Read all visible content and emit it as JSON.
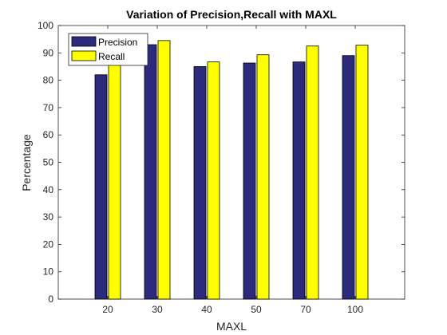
{
  "chart_data": {
    "type": "bar",
    "title": "Variation of Precision,Recall with MAXL",
    "xlabel": "MAXL",
    "ylabel": "Percentage",
    "categories": [
      "20",
      "30",
      "40",
      "50",
      "70",
      "100"
    ],
    "ylim": [
      0,
      100
    ],
    "yticks": [
      0,
      10,
      20,
      30,
      40,
      50,
      60,
      70,
      80,
      90,
      100
    ],
    "grid": false,
    "legend_position": "top-left",
    "series": [
      {
        "name": "Precision",
        "color": "#2b2a7c",
        "values": [
          82,
          93,
          85,
          86.3,
          86.7,
          89
        ]
      },
      {
        "name": "Recall",
        "color": "#ffff00",
        "values": [
          85.5,
          94.5,
          86.7,
          89.3,
          92.5,
          92.8
        ]
      }
    ]
  }
}
